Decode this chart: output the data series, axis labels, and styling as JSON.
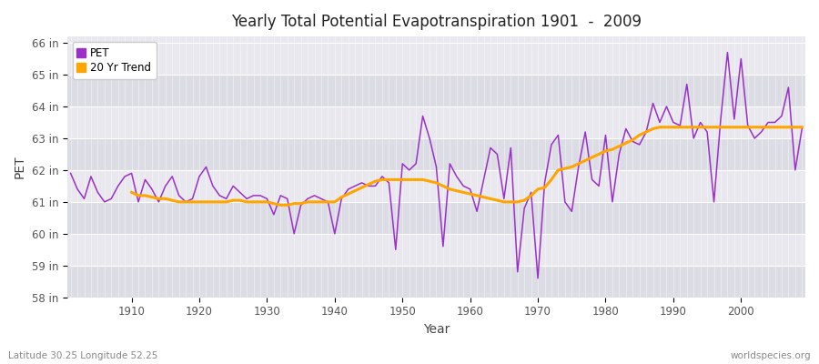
{
  "title": "Yearly Total Potential Evapotranspiration 1901  -  2009",
  "xlabel": "Year",
  "ylabel": "PET",
  "footnote_left": "Latitude 30.25 Longitude 52.25",
  "footnote_right": "worldspecies.org",
  "pet_color": "#9B30C8",
  "trend_color": "#FFA500",
  "fig_bg_color": "#FFFFFF",
  "plot_bg_color": "#E8E8EE",
  "ylim": [
    58,
    66.2
  ],
  "ytick_labels": [
    "58 in",
    "59 in",
    "60 in",
    "61 in",
    "62 in",
    "63 in",
    "64 in",
    "65 in",
    "66 in"
  ],
  "ytick_values": [
    58,
    59,
    60,
    61,
    62,
    63,
    64,
    65,
    66
  ],
  "years": [
    1901,
    1902,
    1903,
    1904,
    1905,
    1906,
    1907,
    1908,
    1909,
    1910,
    1911,
    1912,
    1913,
    1914,
    1915,
    1916,
    1917,
    1918,
    1919,
    1920,
    1921,
    1922,
    1923,
    1924,
    1925,
    1926,
    1927,
    1928,
    1929,
    1930,
    1931,
    1932,
    1933,
    1934,
    1935,
    1936,
    1937,
    1938,
    1939,
    1940,
    1941,
    1942,
    1943,
    1944,
    1945,
    1946,
    1947,
    1948,
    1949,
    1950,
    1951,
    1952,
    1953,
    1954,
    1955,
    1956,
    1957,
    1958,
    1959,
    1960,
    1961,
    1962,
    1963,
    1964,
    1965,
    1966,
    1967,
    1968,
    1969,
    1970,
    1971,
    1972,
    1973,
    1974,
    1975,
    1976,
    1977,
    1978,
    1979,
    1980,
    1981,
    1982,
    1983,
    1984,
    1985,
    1986,
    1987,
    1988,
    1989,
    1990,
    1991,
    1992,
    1993,
    1994,
    1995,
    1996,
    1997,
    1998,
    1999,
    2000,
    2001,
    2002,
    2003,
    2004,
    2005,
    2006,
    2007,
    2008,
    2009
  ],
  "pet_values": [
    61.9,
    61.4,
    61.1,
    61.8,
    61.3,
    61.0,
    61.1,
    61.5,
    61.8,
    61.9,
    61.0,
    61.7,
    61.4,
    61.0,
    61.5,
    61.8,
    61.2,
    61.0,
    61.1,
    61.8,
    62.1,
    61.5,
    61.2,
    61.1,
    61.5,
    61.3,
    61.1,
    61.2,
    61.2,
    61.1,
    60.6,
    61.2,
    61.1,
    60.0,
    60.9,
    61.1,
    61.2,
    61.1,
    61.0,
    60.0,
    61.1,
    61.4,
    61.5,
    61.6,
    61.5,
    61.5,
    61.8,
    61.6,
    59.5,
    62.2,
    62.0,
    62.2,
    63.7,
    63.0,
    62.1,
    59.6,
    62.2,
    61.8,
    61.5,
    61.4,
    60.7,
    61.7,
    62.7,
    62.5,
    61.1,
    62.7,
    58.8,
    60.8,
    61.3,
    58.6,
    61.6,
    62.8,
    63.1,
    61.0,
    60.7,
    62.1,
    63.2,
    61.7,
    61.5,
    63.1,
    61.0,
    62.5,
    63.3,
    62.9,
    62.8,
    63.2,
    64.1,
    63.5,
    64.0,
    63.5,
    63.4,
    64.7,
    63.0,
    63.5,
    63.2,
    61.0,
    63.6,
    65.7,
    63.6,
    65.5,
    63.4,
    63.0,
    63.2,
    63.5,
    63.5,
    63.7,
    64.6,
    62.0,
    63.3
  ],
  "trend_values": [
    null,
    null,
    null,
    null,
    null,
    null,
    null,
    null,
    null,
    61.3,
    61.2,
    61.2,
    61.15,
    61.1,
    61.1,
    61.05,
    61.0,
    61.0,
    61.0,
    61.0,
    61.0,
    61.0,
    61.0,
    61.0,
    61.05,
    61.05,
    61.0,
    61.0,
    61.0,
    61.0,
    60.95,
    60.9,
    60.9,
    60.95,
    60.95,
    61.0,
    61.0,
    61.0,
    61.0,
    61.0,
    61.15,
    61.25,
    61.35,
    61.45,
    61.55,
    61.65,
    61.7,
    61.7,
    61.7,
    61.7,
    61.7,
    61.7,
    61.7,
    61.65,
    61.6,
    61.5,
    61.4,
    61.35,
    61.3,
    61.25,
    61.2,
    61.15,
    61.1,
    61.05,
    61.0,
    61.0,
    61.0,
    61.05,
    61.2,
    61.4,
    61.45,
    61.7,
    62.0,
    62.05,
    62.1,
    62.2,
    62.3,
    62.4,
    62.5,
    62.6,
    62.65,
    62.75,
    62.85,
    62.95,
    63.1,
    63.2,
    63.3,
    63.35,
    63.35,
    63.35,
    63.35,
    63.35,
    63.35,
    63.35,
    63.35,
    63.35,
    63.35,
    63.35,
    63.35,
    63.35,
    63.35,
    63.35,
    63.35,
    63.35,
    63.35,
    63.35,
    63.35,
    63.35,
    63.35
  ]
}
